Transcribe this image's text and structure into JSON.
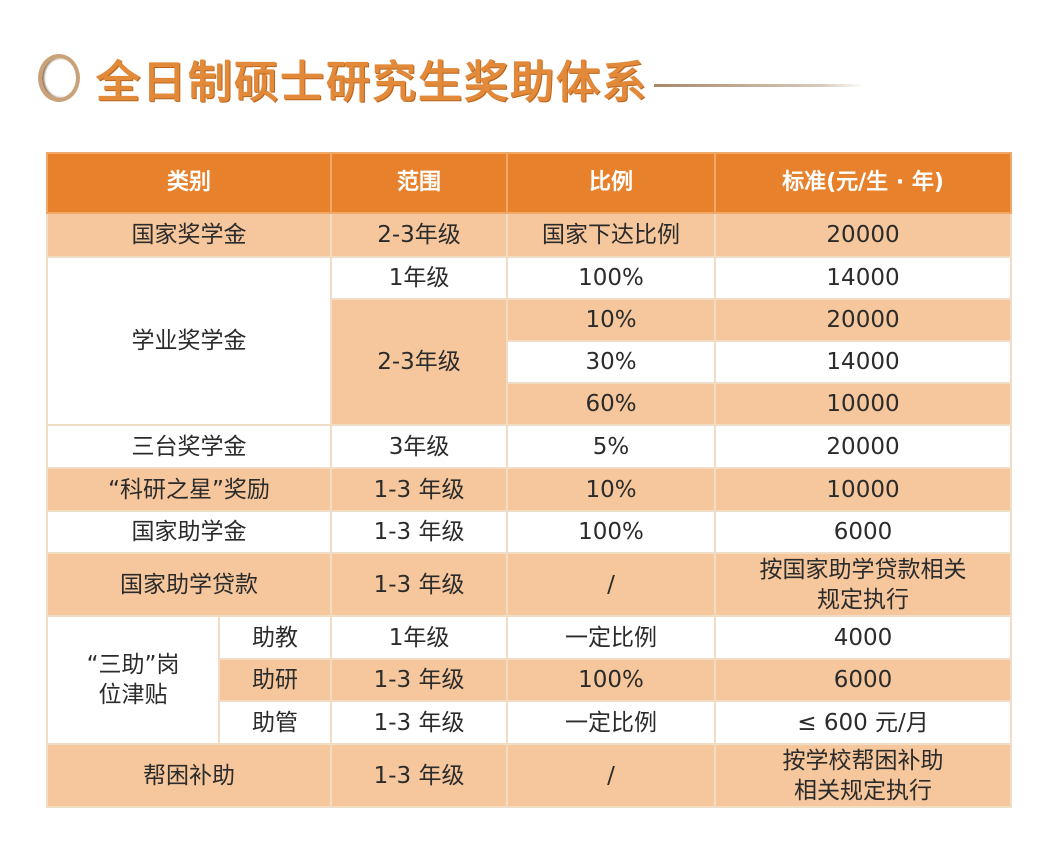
{
  "title": "全日制硕士研究生奖助体系",
  "colors": {
    "header": "#e7812c",
    "peach_row": "#f6c79c",
    "title": "#e2893a"
  },
  "table": {
    "headers": [
      "类别",
      "范围",
      "比例",
      "标准(元/生 · 年)"
    ],
    "guojia_jiangxuejin": {
      "category": "国家奖学金",
      "range": "2-3年级",
      "ratio": "国家下达比例",
      "standard": "20000"
    },
    "xueye": {
      "category": "学业奖学金",
      "year1": {
        "range": "1年级",
        "ratio": "100%",
        "standard": "14000"
      },
      "year23_range": "2-3年级",
      "tiers": [
        {
          "ratio": "10%",
          "standard": "20000"
        },
        {
          "ratio": "30%",
          "standard": "14000"
        },
        {
          "ratio": "60%",
          "standard": "10000"
        }
      ]
    },
    "santai": {
      "category": "三台奖学金",
      "range": "3年级",
      "ratio": "5%",
      "standard": "20000"
    },
    "keyan": {
      "category": "“科研之星”奖励",
      "range": "1-3 年级",
      "ratio": "10%",
      "standard": "10000"
    },
    "zhuxuejin": {
      "category": "国家助学金",
      "range": "1-3 年级",
      "ratio": "100%",
      "standard": "6000"
    },
    "daikuan": {
      "category": "国家助学贷款",
      "range": "1-3 年级",
      "ratio": "/",
      "standard_line1": "按国家助学贷款相关",
      "standard_line2": "规定执行"
    },
    "sanzhu": {
      "category_line1": "“三助”岗",
      "category_line2": "位津贴",
      "rows": [
        {
          "sub": "助教",
          "range": "1年级",
          "ratio": "一定比例",
          "standard": "4000"
        },
        {
          "sub": "助研",
          "range": "1-3 年级",
          "ratio": "100%",
          "standard": "6000"
        },
        {
          "sub": "助管",
          "range": "1-3 年级",
          "ratio": "一定比例",
          "standard": "≤ 600 元/月"
        }
      ]
    },
    "bangkun": {
      "category": "帮困补助",
      "range": "1-3 年级",
      "ratio": "/",
      "standard_line1": "按学校帮困补助",
      "standard_line2": "相关规定执行"
    }
  }
}
